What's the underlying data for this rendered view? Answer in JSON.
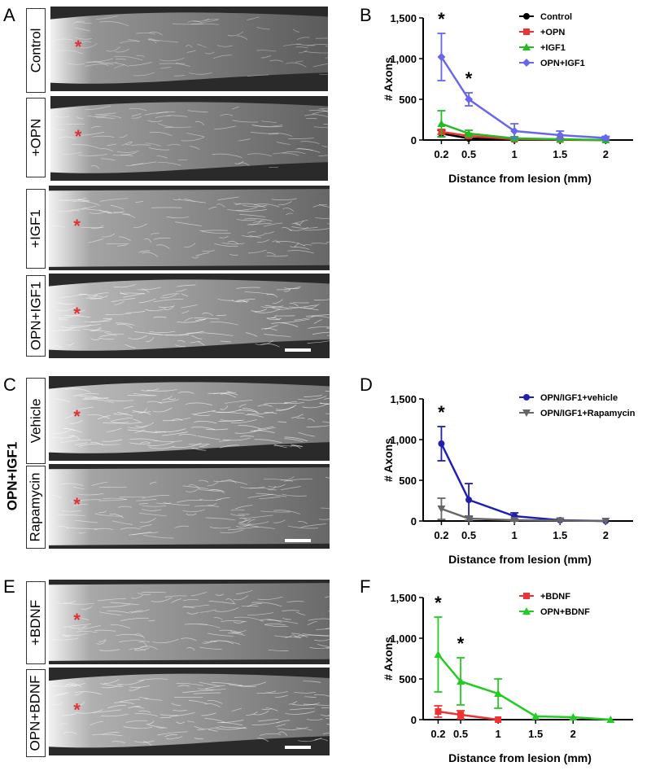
{
  "panels": {
    "A": {
      "letter": "A",
      "images": [
        {
          "label": "Control"
        },
        {
          "label": "+OPN"
        },
        {
          "label": "+IGF1"
        },
        {
          "label": "OPN+IGF1"
        }
      ]
    },
    "C": {
      "letter": "C",
      "group": "OPN+IGF1",
      "images": [
        {
          "label": "Vehicle"
        },
        {
          "label": "Rapamycin"
        }
      ]
    },
    "E": {
      "letter": "E",
      "images": [
        {
          "label": "+BDNF"
        },
        {
          "label": "OPN+BDNF"
        }
      ]
    },
    "B": {
      "letter": "B"
    },
    "D": {
      "letter": "D"
    },
    "F": {
      "letter": "F"
    }
  },
  "marker_color": "#e23030",
  "chart_data": [
    {
      "panel": "B",
      "type": "line",
      "ylabel": "# Axons",
      "xlabel": "Distance from lesion (mm)",
      "x": [
        0.2,
        0.5,
        1,
        1.5,
        2
      ],
      "xticks": [
        "0.2",
        "0.5",
        "1",
        "1.5",
        "2"
      ],
      "yticks": [
        "0",
        "500",
        "1,000",
        "1,500"
      ],
      "ylim": [
        0,
        1500
      ],
      "legend_position": "top-right",
      "annotations": [
        {
          "text": "*",
          "x": 0.2
        },
        {
          "text": "*",
          "x": 0.5
        }
      ],
      "series": [
        {
          "name": "Control",
          "color": "#000000",
          "marker": "circle",
          "values": [
            80,
            20,
            5,
            2,
            0
          ],
          "errors": [
            40,
            15,
            5,
            0,
            0
          ]
        },
        {
          "name": "+OPN",
          "color": "#ee3333",
          "marker": "square",
          "values": [
            100,
            50,
            10,
            5,
            0
          ],
          "errors": [
            30,
            20,
            10,
            0,
            0
          ]
        },
        {
          "name": "+IGF1",
          "color": "#22bb22",
          "marker": "triangle",
          "values": [
            200,
            80,
            20,
            10,
            0
          ],
          "errors": [
            160,
            40,
            20,
            10,
            0
          ]
        },
        {
          "name": "OPN+IGF1",
          "color": "#6666ee",
          "marker": "diamond",
          "values": [
            1020,
            500,
            110,
            60,
            25
          ],
          "errors": [
            290,
            80,
            90,
            50,
            20
          ]
        }
      ]
    },
    {
      "panel": "D",
      "type": "line",
      "ylabel": "# Axons",
      "xlabel": "Distance from lesion (mm)",
      "x": [
        0.2,
        0.5,
        1,
        1.5,
        2
      ],
      "xticks": [
        "0.2",
        "0.5",
        "1",
        "1.5",
        "2"
      ],
      "yticks": [
        "0",
        "500",
        "1,000",
        "1,500"
      ],
      "ylim": [
        0,
        1500
      ],
      "legend_position": "top-right",
      "annotations": [
        {
          "text": "*",
          "x": 0.2
        }
      ],
      "series": [
        {
          "name": "OPN/IGF1+vehicle",
          "color": "#1f1fb4",
          "marker": "circle",
          "values": [
            950,
            260,
            60,
            10,
            0
          ],
          "errors": [
            210,
            200,
            40,
            10,
            0
          ]
        },
        {
          "name": "OPN/IGF1+Rapamycin",
          "color": "#666666",
          "marker": "triangle-down",
          "values": [
            150,
            30,
            10,
            5,
            0
          ],
          "errors": [
            130,
            20,
            10,
            0,
            0
          ]
        }
      ]
    },
    {
      "panel": "F",
      "type": "line",
      "ylabel": "# Axons",
      "xlabel": "Distance from lesion (mm)",
      "x": [
        0.2,
        0.5,
        1,
        1.5,
        2,
        2.5
      ],
      "xticks": [
        "0.2",
        "0.5",
        "1",
        "1.5",
        "2"
      ],
      "yticks": [
        "0",
        "500",
        "1,000",
        "1,500"
      ],
      "ylim": [
        0,
        1500
      ],
      "legend_position": "top-right",
      "annotations": [
        {
          "text": "*",
          "x": 0.2
        },
        {
          "text": "*",
          "x": 0.5
        }
      ],
      "series": [
        {
          "name": "+BDNF",
          "color": "#ee3333",
          "marker": "square",
          "values": [
            100,
            60,
            0,
            null,
            null,
            null
          ],
          "errors": [
            70,
            50,
            0,
            null,
            null,
            null
          ]
        },
        {
          "name": "OPN+BDNF",
          "color": "#22cc22",
          "marker": "triangle",
          "values": [
            800,
            470,
            320,
            40,
            30,
            0
          ],
          "errors": [
            460,
            290,
            180,
            0,
            0,
            0
          ]
        }
      ]
    }
  ]
}
